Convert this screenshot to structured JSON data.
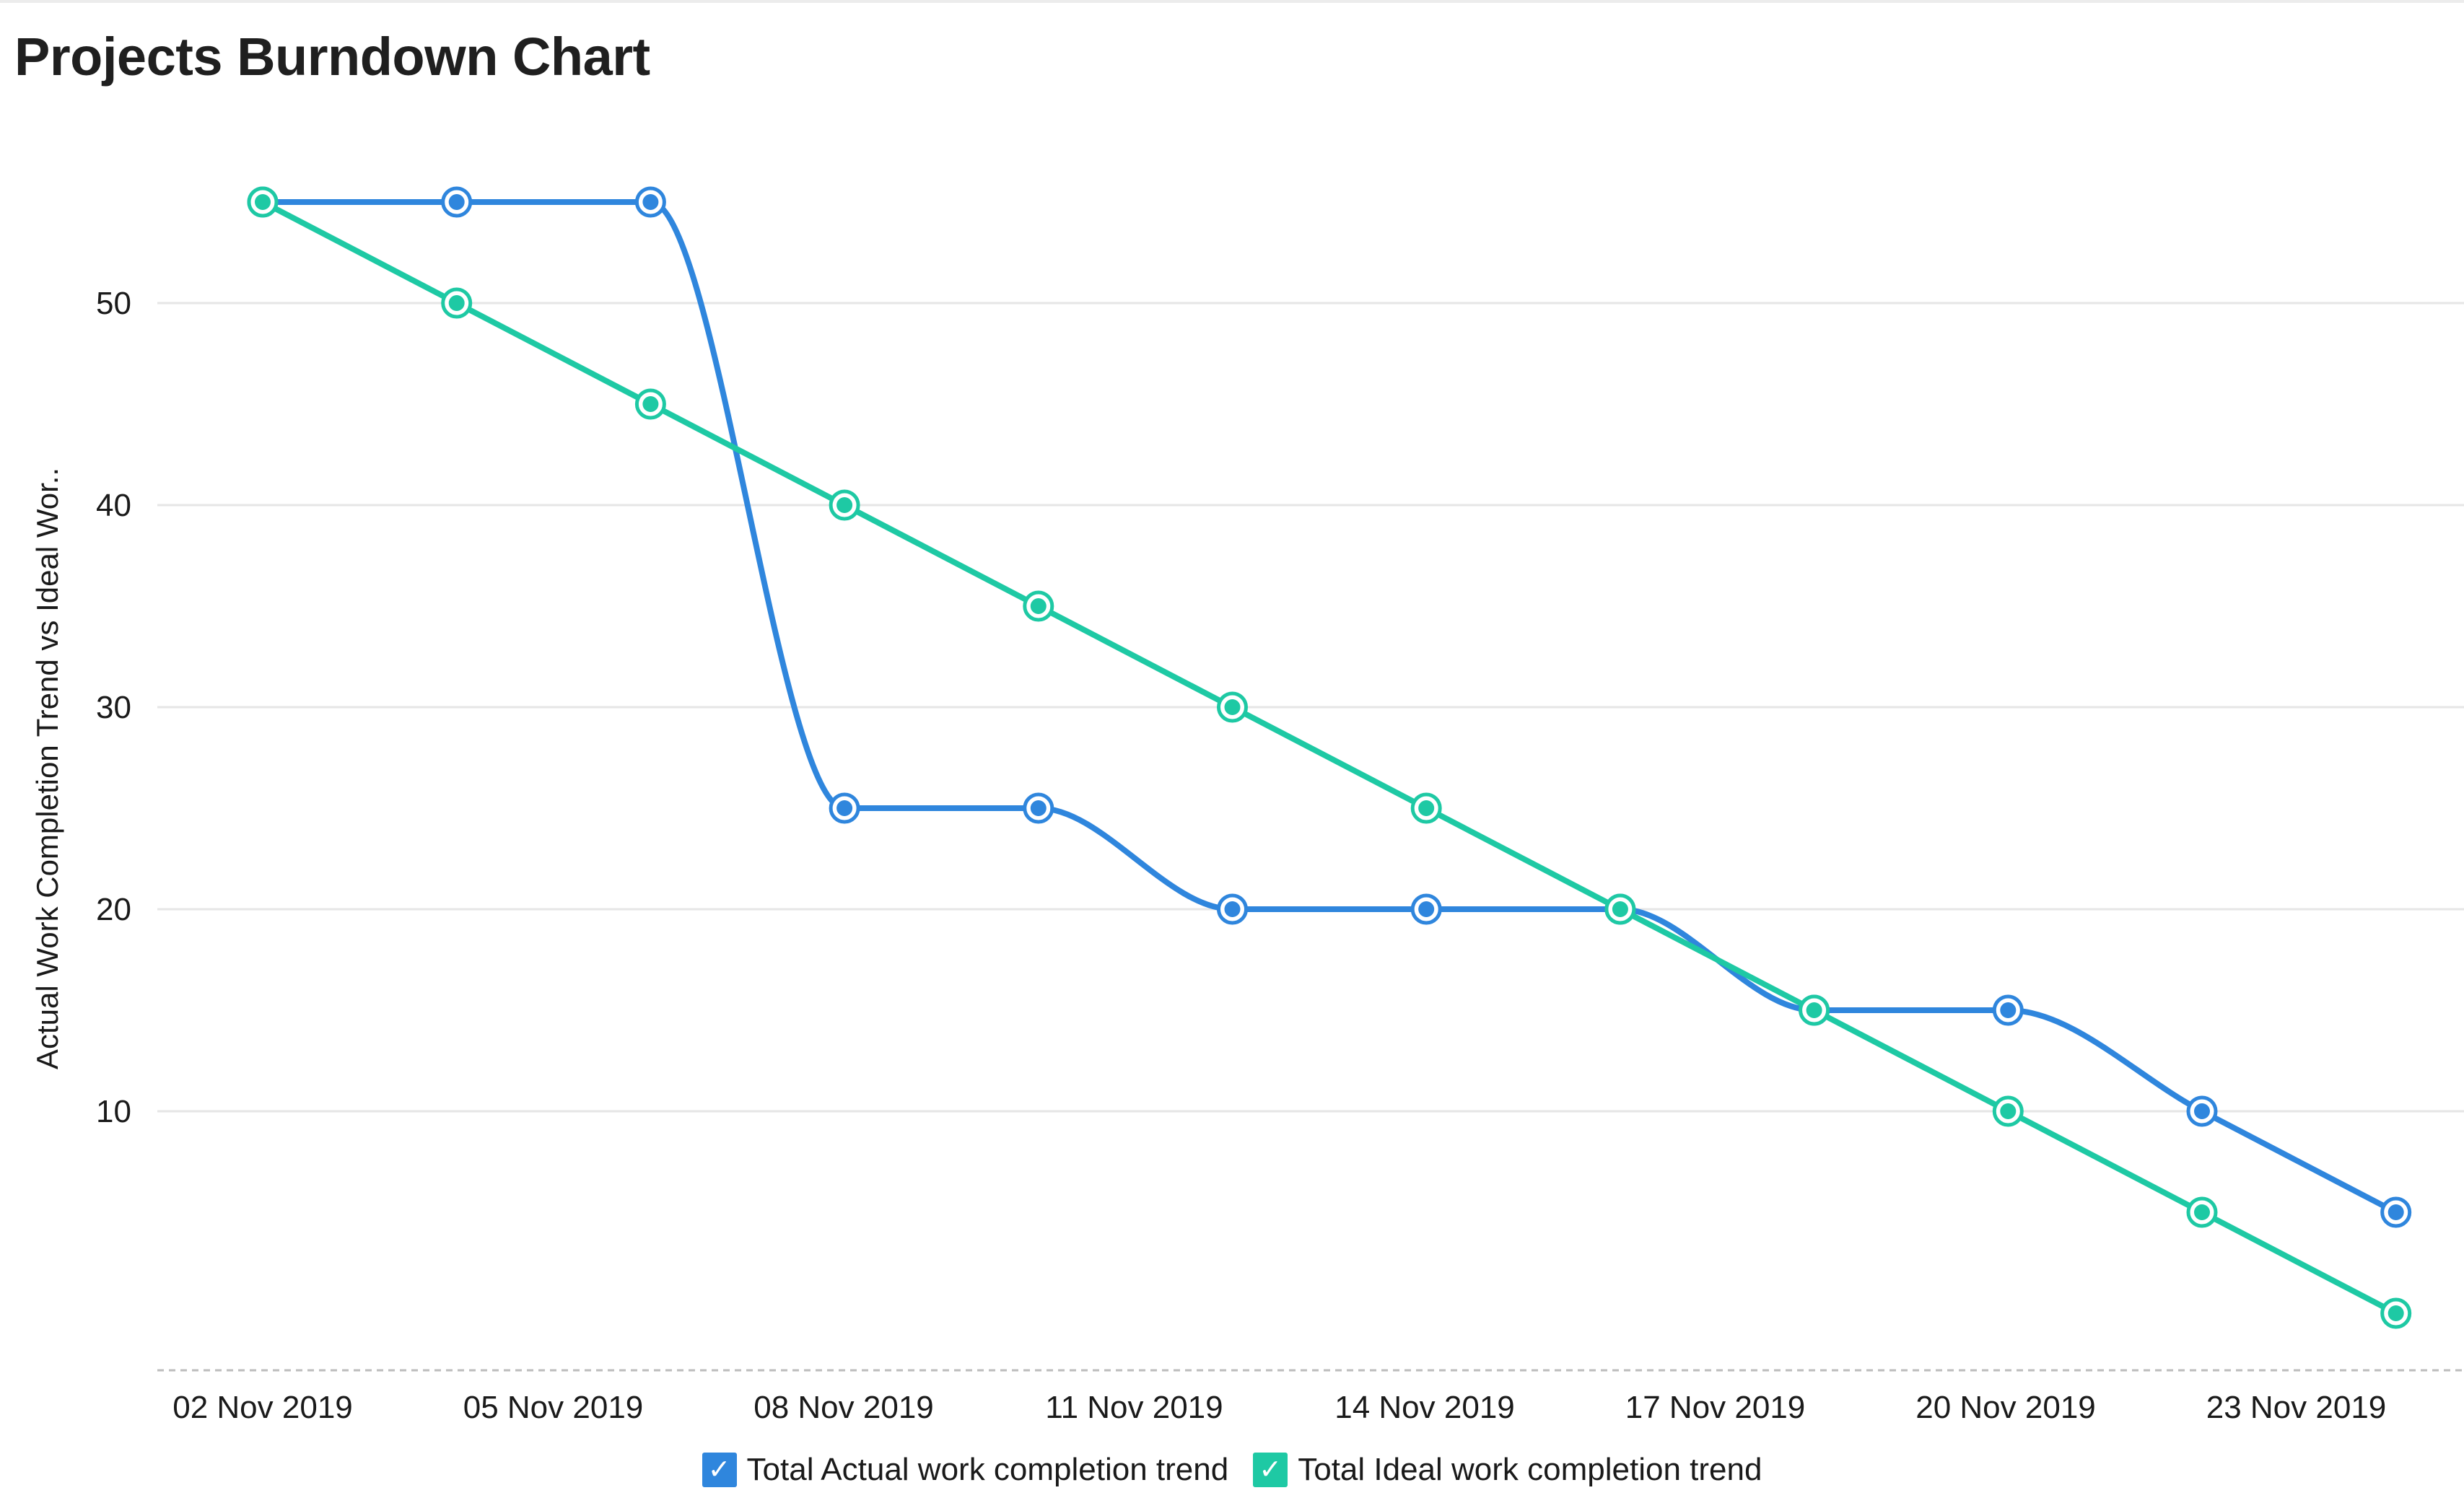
{
  "chart_data": {
    "type": "line",
    "title": "Projects Burndown Chart",
    "xlabel": "",
    "ylabel": "Actual Work Completion Trend vs Ideal Wor..",
    "categories": [
      "02 Nov 2019",
      "04 Nov 2019",
      "06 Nov 2019",
      "08 Nov 2019",
      "10 Nov 2019",
      "12 Nov 2019",
      "14 Nov 2019",
      "16 Nov 2019",
      "18 Nov 2019",
      "20 Nov 2019",
      "22 Nov 2019",
      "24 Nov 2019"
    ],
    "x_tick_labels": [
      "02 Nov 2019",
      "05 Nov 2019",
      "08 Nov 2019",
      "11 Nov 2019",
      "14 Nov 2019",
      "17 Nov 2019",
      "20 Nov 2019",
      "23 Nov 2019"
    ],
    "y_ticks": [
      10,
      20,
      30,
      40,
      50
    ],
    "ylim": [
      -2,
      57
    ],
    "grid": true,
    "legend_position": "bottom-center",
    "series": [
      {
        "name": "Total Actual work completion trend",
        "color": "#2f86dd",
        "values": [
          55,
          55,
          55,
          25,
          25,
          20,
          20,
          20,
          15,
          15,
          10,
          5
        ]
      },
      {
        "name": "Total Ideal work completion trend",
        "color": "#1ec9a4",
        "values": [
          55,
          50,
          45,
          40,
          35,
          30,
          25,
          20,
          15,
          10,
          5,
          0
        ]
      }
    ]
  },
  "legend": {
    "check_glyph": "✓"
  }
}
